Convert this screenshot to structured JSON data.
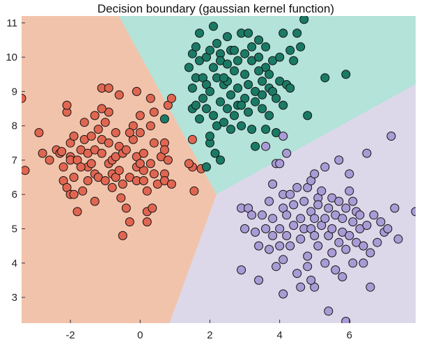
{
  "chart_data": {
    "type": "scatter",
    "title": "Decision boundary (gaussian kernel function)",
    "xlabel": "",
    "ylabel": "",
    "xlim": [
      -3.4,
      7.9
    ],
    "ylim": [
      2.25,
      11.2
    ],
    "xticks": [
      -2,
      0,
      2,
      4,
      6
    ],
    "yticks": [
      3,
      4,
      5,
      6,
      7,
      8,
      9,
      10,
      11
    ],
    "grid": false,
    "legend": "none",
    "regions": [
      {
        "class": "A",
        "color": "#f2c3ab",
        "polygon": [
          [
            -3.4,
            2.25
          ],
          [
            0.85,
            2.25
          ],
          [
            2.2,
            6.0
          ],
          [
            1.6,
            7.1
          ],
          [
            -0.6,
            11.2
          ],
          [
            -3.4,
            11.2
          ]
        ]
      },
      {
        "class": "B",
        "color": "#b3e3d9",
        "polygon": [
          [
            -0.6,
            11.2
          ],
          [
            7.9,
            11.2
          ],
          [
            7.9,
            9.2
          ],
          [
            2.2,
            6.0
          ],
          [
            1.6,
            7.1
          ]
        ]
      },
      {
        "class": "C",
        "color": "#dcd8ea",
        "polygon": [
          [
            0.85,
            2.25
          ],
          [
            7.9,
            2.25
          ],
          [
            7.9,
            9.2
          ],
          [
            2.2,
            6.0
          ]
        ]
      }
    ],
    "series": [
      {
        "class": "A",
        "color": "#e06651",
        "points": [
          [
            -3.4,
            8.8
          ],
          [
            -3.3,
            6.7
          ],
          [
            -2.9,
            7.8
          ],
          [
            -2.8,
            7.2
          ],
          [
            -2.6,
            7.0
          ],
          [
            -2.4,
            7.3
          ],
          [
            -2.3,
            7.2
          ],
          [
            -2.2,
            6.8
          ],
          [
            -2.2,
            6.4
          ],
          [
            -2.1,
            8.4
          ],
          [
            -2.1,
            8.6
          ],
          [
            -2.0,
            7.5
          ],
          [
            -2.0,
            7.1
          ],
          [
            -2.0,
            7.0
          ],
          [
            -2.1,
            6.2
          ],
          [
            -2.0,
            6.0
          ],
          [
            -1.9,
            6.0
          ],
          [
            -1.9,
            7.7
          ],
          [
            -1.8,
            5.5
          ],
          [
            -1.8,
            7.0
          ],
          [
            -1.7,
            7.3
          ],
          [
            -1.6,
            8.1
          ],
          [
            -1.6,
            7.6
          ],
          [
            -1.5,
            7.2
          ],
          [
            -1.5,
            6.8
          ],
          [
            -1.5,
            6.4
          ],
          [
            -1.4,
            7.7
          ],
          [
            -1.4,
            6.9
          ],
          [
            -1.3,
            8.3
          ],
          [
            -1.3,
            7.3
          ],
          [
            -1.3,
            6.6
          ],
          [
            -1.3,
            5.8
          ],
          [
            -1.2,
            7.9
          ],
          [
            -1.2,
            6.5
          ],
          [
            -1.1,
            9.1
          ],
          [
            -1.1,
            7.6
          ],
          [
            -1.1,
            7.2
          ],
          [
            -1.0,
            8.1
          ],
          [
            -1.0,
            6.4
          ],
          [
            -0.9,
            8.4
          ],
          [
            -0.9,
            9.1
          ],
          [
            -0.9,
            7.5
          ],
          [
            -0.9,
            6.9
          ],
          [
            -0.8,
            7.0
          ],
          [
            -0.8,
            6.6
          ],
          [
            -0.8,
            6.2
          ],
          [
            -0.7,
            7.8
          ],
          [
            -0.7,
            7.1
          ],
          [
            -0.7,
            6.5
          ],
          [
            -0.6,
            7.4
          ],
          [
            -0.6,
            6.7
          ],
          [
            -0.5,
            7.2
          ],
          [
            -0.5,
            6.3
          ],
          [
            -0.5,
            4.8
          ],
          [
            -0.4,
            5.6
          ],
          [
            -0.4,
            7.3
          ],
          [
            -0.3,
            6.5
          ],
          [
            -0.2,
            8.0
          ],
          [
            -0.2,
            7.6
          ],
          [
            -0.1,
            7.1
          ],
          [
            -0.1,
            6.8
          ],
          [
            -0.1,
            6.4
          ],
          [
            0.0,
            8.3
          ],
          [
            0.0,
            7.8
          ],
          [
            0.1,
            7.2
          ],
          [
            0.1,
            6.7
          ],
          [
            0.1,
            6.4
          ],
          [
            0.2,
            6.1
          ],
          [
            0.2,
            5.5
          ],
          [
            0.3,
            8.0
          ],
          [
            0.3,
            6.9
          ],
          [
            0.4,
            7.5
          ],
          [
            0.4,
            6.6
          ],
          [
            0.5,
            6.3
          ],
          [
            0.6,
            7.1
          ],
          [
            0.7,
            7.5
          ],
          [
            0.7,
            6.6
          ],
          [
            0.7,
            6.4
          ],
          [
            0.8,
            8.6
          ],
          [
            0.8,
            7.0
          ],
          [
            0.9,
            8.8
          ],
          [
            0.9,
            6.3
          ],
          [
            0.7,
            7.3
          ],
          [
            -0.6,
            8.9
          ],
          [
            0.2,
            5.2
          ],
          [
            0.35,
            5.6
          ],
          [
            -0.3,
            5.2
          ],
          [
            -0.1,
            9.0
          ],
          [
            1.5,
            7.6
          ],
          [
            1.5,
            6.8
          ],
          [
            1.4,
            6.9
          ],
          [
            0.3,
            8.8
          ],
          [
            0.4,
            8.4
          ],
          [
            -1.7,
            6.8
          ],
          [
            -1.1,
            8.5
          ],
          [
            -0.3,
            7.8
          ],
          [
            -1.9,
            6.5
          ],
          [
            -0.55,
            5.9
          ],
          [
            0.0,
            6.9
          ],
          [
            1.55,
            6.1
          ],
          [
            1.75,
            6.75
          ],
          [
            -2.25,
            7.25
          ],
          [
            -1.65,
            6.1
          ]
        ]
      },
      {
        "class": "B",
        "color": "#1a7a65",
        "points": [
          [
            0.7,
            8.2
          ],
          [
            1.4,
            9.7
          ],
          [
            1.5,
            8.5
          ],
          [
            1.5,
            9.1
          ],
          [
            1.5,
            10.1
          ],
          [
            1.6,
            9.4
          ],
          [
            1.6,
            8.6
          ],
          [
            1.6,
            10.3
          ],
          [
            1.7,
            10.7
          ],
          [
            1.7,
            8.2
          ],
          [
            1.7,
            9.9
          ],
          [
            1.8,
            9.4
          ],
          [
            1.8,
            8.8
          ],
          [
            1.9,
            10.0
          ],
          [
            1.9,
            9.2
          ],
          [
            1.9,
            8.5
          ],
          [
            2.0,
            10.2
          ],
          [
            2.0,
            9.0
          ],
          [
            2.0,
            7.5
          ],
          [
            2.1,
            10.9
          ],
          [
            2.1,
            9.7
          ],
          [
            2.1,
            8.3
          ],
          [
            2.2,
            10.4
          ],
          [
            2.2,
            9.4
          ],
          [
            2.2,
            8.0
          ],
          [
            2.3,
            10.1
          ],
          [
            2.3,
            9.9
          ],
          [
            2.3,
            8.7
          ],
          [
            2.4,
            9.2
          ],
          [
            2.4,
            8.1
          ],
          [
            2.5,
            10.6
          ],
          [
            2.5,
            9.8
          ],
          [
            2.5,
            9.3
          ],
          [
            2.5,
            8.5
          ],
          [
            2.6,
            8.9
          ],
          [
            2.6,
            10.2
          ],
          [
            2.7,
            10.2
          ],
          [
            2.7,
            9.6
          ],
          [
            2.7,
            8.3
          ],
          [
            2.8,
            9.9
          ],
          [
            2.8,
            9.1
          ],
          [
            2.8,
            8.6
          ],
          [
            2.9,
            10.7
          ],
          [
            2.9,
            8.0
          ],
          [
            3.0,
            10.1
          ],
          [
            3.0,
            9.5
          ],
          [
            3.0,
            8.8
          ],
          [
            3.1,
            9.2
          ],
          [
            3.1,
            8.4
          ],
          [
            3.2,
            10.3
          ],
          [
            3.2,
            9.9
          ],
          [
            3.2,
            7.9
          ],
          [
            3.3,
            9.0
          ],
          [
            3.3,
            8.7
          ],
          [
            3.3,
            7.4
          ],
          [
            3.4,
            10.5
          ],
          [
            3.4,
            10.0
          ],
          [
            3.5,
            9.3
          ],
          [
            3.5,
            8.9
          ],
          [
            3.5,
            8.5
          ],
          [
            3.6,
            9.7
          ],
          [
            3.6,
            10.3
          ],
          [
            3.6,
            7.9
          ],
          [
            3.7,
            9.1
          ],
          [
            3.7,
            8.3
          ],
          [
            3.7,
            9.5
          ],
          [
            3.8,
            9.9
          ],
          [
            3.8,
            9.0
          ],
          [
            3.9,
            8.8
          ],
          [
            3.9,
            7.8
          ],
          [
            4.0,
            10.0
          ],
          [
            4.0,
            9.3
          ],
          [
            4.1,
            10.7
          ],
          [
            4.1,
            8.6
          ],
          [
            4.2,
            9.2
          ],
          [
            4.3,
            9.1
          ],
          [
            4.3,
            10.2
          ],
          [
            4.4,
            9.9
          ],
          [
            4.5,
            10.7
          ],
          [
            4.6,
            10.3
          ],
          [
            4.7,
            11.1
          ],
          [
            4.8,
            8.3
          ],
          [
            5.3,
            9.4
          ],
          [
            5.9,
            9.5
          ],
          [
            2.0,
            7.7
          ],
          [
            2.3,
            7.0
          ],
          [
            1.9,
            6.8
          ],
          [
            2.4,
            9.4
          ],
          [
            2.9,
            8.6
          ],
          [
            3.1,
            10.7
          ],
          [
            2.6,
            7.9
          ],
          [
            3.4,
            9.6
          ],
          [
            2.15,
            7.2
          ]
        ]
      },
      {
        "class": "C",
        "color": "#a99bd5",
        "points": [
          [
            2.9,
            5.6
          ],
          [
            2.9,
            3.8
          ],
          [
            3.0,
            5.0
          ],
          [
            3.1,
            5.6
          ],
          [
            3.3,
            4.9
          ],
          [
            3.4,
            4.5
          ],
          [
            3.4,
            3.5
          ],
          [
            3.5,
            5.4
          ],
          [
            3.6,
            5.0
          ],
          [
            3.7,
            4.4
          ],
          [
            3.7,
            5.8
          ],
          [
            3.8,
            4.8
          ],
          [
            3.8,
            6.3
          ],
          [
            3.8,
            5.3
          ],
          [
            3.9,
            6.9
          ],
          [
            3.9,
            3.9
          ],
          [
            4.0,
            4.5
          ],
          [
            4.0,
            5.0
          ],
          [
            4.1,
            5.6
          ],
          [
            4.1,
            6.0
          ],
          [
            4.1,
            4.1
          ],
          [
            4.1,
            3.1
          ],
          [
            4.2,
            4.8
          ],
          [
            4.2,
            5.4
          ],
          [
            4.2,
            7.2
          ],
          [
            4.3,
            6.0
          ],
          [
            4.3,
            4.5
          ],
          [
            4.4,
            5.7
          ],
          [
            4.4,
            5.1
          ],
          [
            4.5,
            6.2
          ],
          [
            4.5,
            3.7
          ],
          [
            4.6,
            5.3
          ],
          [
            4.6,
            4.7
          ],
          [
            4.7,
            5.8
          ],
          [
            4.7,
            5.0
          ],
          [
            4.8,
            6.2
          ],
          [
            4.8,
            4.2
          ],
          [
            4.9,
            5.5
          ],
          [
            4.9,
            5.0
          ],
          [
            4.9,
            6.4
          ],
          [
            5.0,
            5.3
          ],
          [
            5.0,
            4.8
          ],
          [
            5.0,
            3.3
          ],
          [
            5.1,
            5.9
          ],
          [
            5.1,
            4.5
          ],
          [
            5.2,
            5.1
          ],
          [
            5.2,
            6.1
          ],
          [
            5.3,
            4.0
          ],
          [
            5.3,
            5.3
          ],
          [
            5.4,
            5.6
          ],
          [
            5.4,
            4.8
          ],
          [
            5.5,
            5.9
          ],
          [
            5.5,
            4.3
          ],
          [
            5.5,
            5.0
          ],
          [
            5.6,
            5.4
          ],
          [
            5.6,
            3.8
          ],
          [
            5.7,
            4.6
          ],
          [
            5.7,
            5.8
          ],
          [
            5.8,
            4.9
          ],
          [
            5.8,
            5.3
          ],
          [
            5.9,
            5.6
          ],
          [
            5.9,
            4.4
          ],
          [
            6.0,
            6.1
          ],
          [
            6.0,
            4.8
          ],
          [
            6.1,
            5.2
          ],
          [
            6.1,
            5.8
          ],
          [
            6.1,
            4.0
          ],
          [
            6.2,
            5.5
          ],
          [
            6.2,
            4.6
          ],
          [
            6.3,
            5.4
          ],
          [
            6.3,
            5.0
          ],
          [
            6.4,
            4.5
          ],
          [
            6.5,
            5.1
          ],
          [
            6.6,
            3.3
          ],
          [
            6.5,
            7.2
          ],
          [
            6.7,
            5.4
          ],
          [
            6.8,
            4.6
          ],
          [
            6.9,
            5.2
          ],
          [
            7.0,
            4.9
          ],
          [
            7.1,
            5.0
          ],
          [
            7.2,
            7.7
          ],
          [
            7.3,
            5.6
          ],
          [
            7.4,
            4.7
          ],
          [
            7.9,
            5.5
          ],
          [
            5.4,
            2.6
          ],
          [
            5.9,
            2.3
          ],
          [
            5.7,
            7.0
          ],
          [
            5.8,
            3.6
          ],
          [
            6.0,
            6.6
          ],
          [
            4.8,
            3.9
          ],
          [
            3.6,
            7.4
          ],
          [
            4.1,
            7.7
          ],
          [
            4.0,
            6.9
          ],
          [
            5.0,
            6.6
          ],
          [
            5.3,
            6.8
          ],
          [
            4.6,
            3.3
          ],
          [
            5.1,
            5.7
          ],
          [
            6.4,
            4.0
          ],
          [
            3.2,
            5.4
          ],
          [
            4.9,
            3.5
          ],
          [
            6.6,
            4.3
          ]
        ]
      }
    ]
  }
}
